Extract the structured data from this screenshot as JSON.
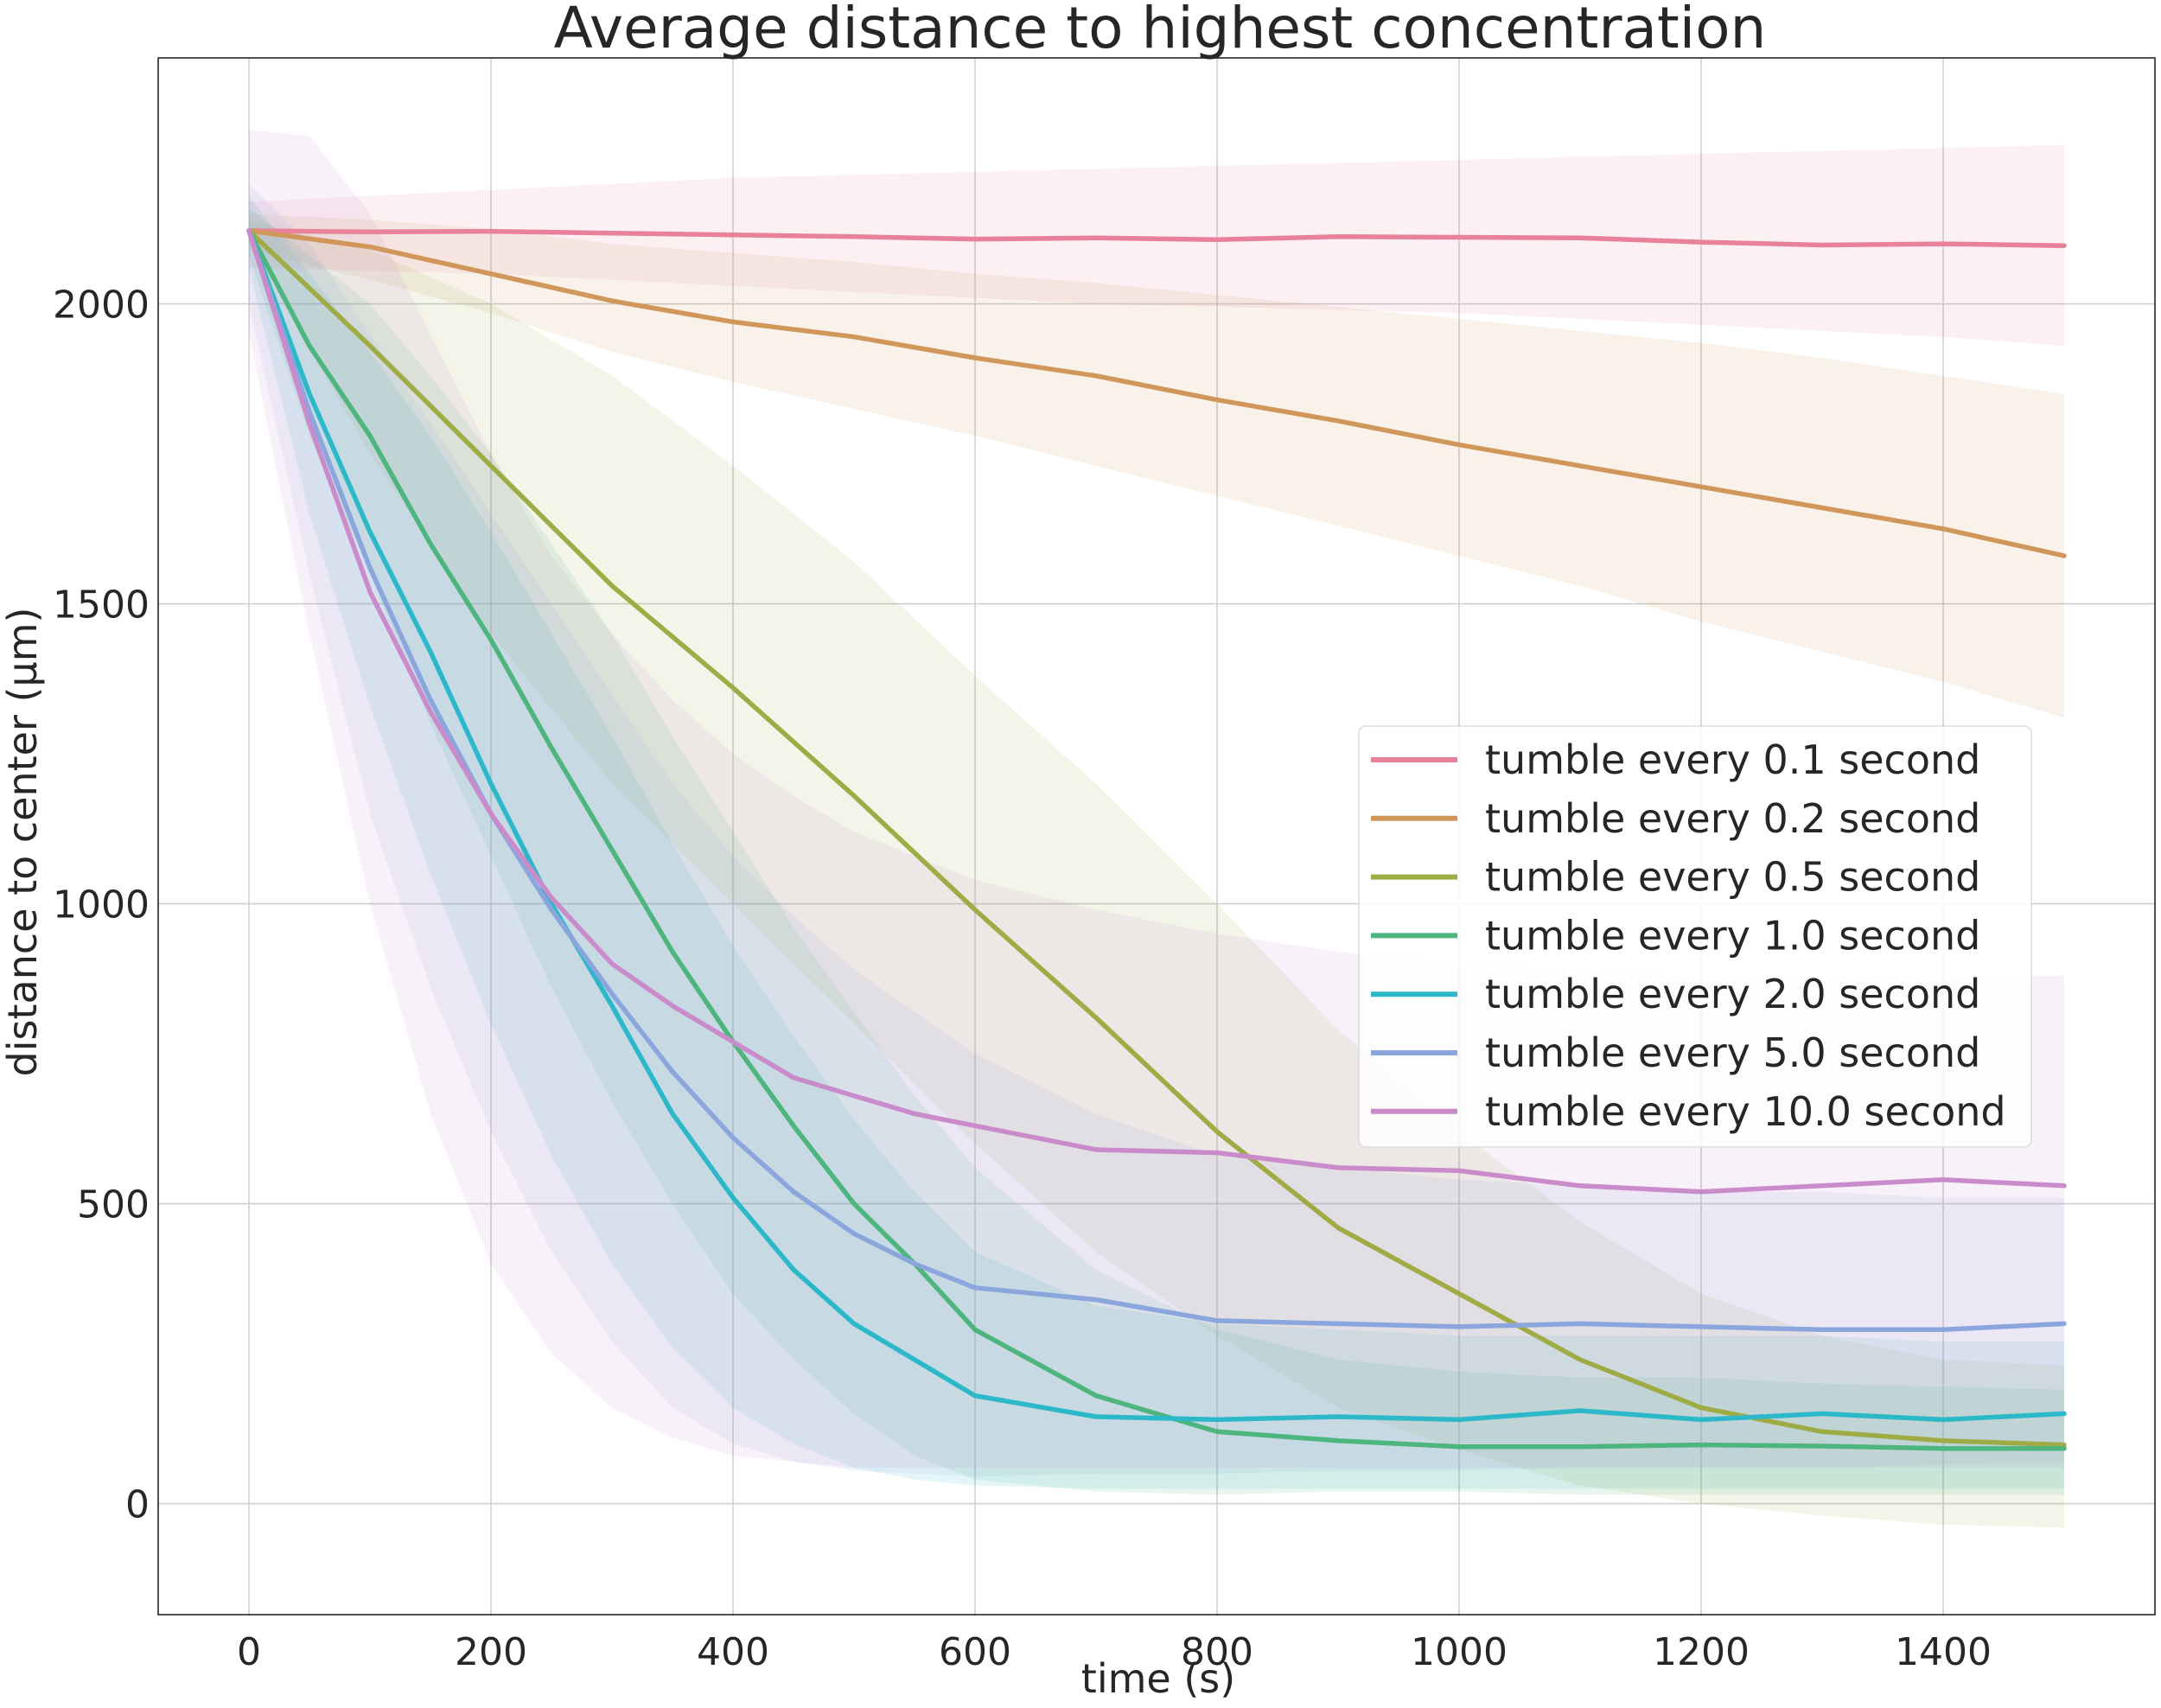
{
  "chart_data": {
    "type": "line",
    "title": "Average distance to highest concentration",
    "xlabel": "time (s)",
    "ylabel": "distance to center (μm)",
    "xlim": [
      -75,
      1575
    ],
    "ylim": [
      -185,
      2410
    ],
    "xticks": [
      0,
      200,
      400,
      600,
      800,
      1000,
      1200,
      1400
    ],
    "yticks": [
      0,
      500,
      1000,
      1500,
      2000
    ],
    "grid": true,
    "legend_position": "center-right",
    "series": [
      {
        "name": "tumble every 0.1 second",
        "color": "#e8829a",
        "x": [
          0,
          100,
          200,
          300,
          400,
          500,
          600,
          700,
          800,
          900,
          1000,
          1100,
          1200,
          1300,
          1400,
          1500
        ],
        "y": [
          2122,
          2120,
          2121,
          2118,
          2115,
          2112,
          2108,
          2110,
          2107,
          2112,
          2111,
          2110,
          2103,
          2098,
          2100,
          2097
        ],
        "y_lower": [
          2060,
          2055,
          2050,
          2040,
          2030,
          2020,
          2010,
          2000,
          1995,
          1990,
          1985,
          1975,
          1965,
          1955,
          1945,
          1930
        ],
        "y_upper": [
          2170,
          2180,
          2190,
          2200,
          2210,
          2215,
          2220,
          2225,
          2230,
          2235,
          2240,
          2245,
          2250,
          2255,
          2260,
          2265
        ]
      },
      {
        "name": "tumble every 0.2 second",
        "color": "#d1965a",
        "x": [
          0,
          100,
          200,
          300,
          400,
          500,
          600,
          700,
          800,
          900,
          1000,
          1100,
          1200,
          1300,
          1400,
          1500
        ],
        "y": [
          2122,
          2095,
          2050,
          2005,
          1970,
          1945,
          1910,
          1880,
          1840,
          1805,
          1765,
          1730,
          1695,
          1660,
          1625,
          1580
        ],
        "y_lower": [
          2090,
          2040,
          1985,
          1920,
          1870,
          1825,
          1780,
          1730,
          1680,
          1630,
          1580,
          1530,
          1470,
          1420,
          1370,
          1310
        ],
        "y_upper": [
          2150,
          2140,
          2125,
          2100,
          2085,
          2070,
          2050,
          2035,
          2015,
          1995,
          1975,
          1955,
          1935,
          1910,
          1880,
          1850
        ]
      },
      {
        "name": "tumble every 0.5 second",
        "color": "#9fac46",
        "x": [
          0,
          100,
          200,
          300,
          400,
          500,
          600,
          700,
          800,
          900,
          1000,
          1100,
          1200,
          1300,
          1400,
          1500
        ],
        "y": [
          2122,
          1930,
          1730,
          1530,
          1360,
          1180,
          990,
          810,
          620,
          460,
          350,
          240,
          160,
          120,
          105,
          98
        ],
        "y_lower": [
          2100,
          1750,
          1450,
          1200,
          1000,
          800,
          600,
          420,
          280,
          160,
          90,
          30,
          0,
          -20,
          -35,
          -40
        ],
        "y_upper": [
          2140,
          2090,
          2000,
          1880,
          1730,
          1570,
          1380,
          1200,
          1000,
          790,
          620,
          470,
          350,
          280,
          240,
          230
        ]
      },
      {
        "name": "tumble every 1.0 second",
        "color": "#4db57d",
        "x": [
          0,
          50,
          100,
          150,
          200,
          250,
          300,
          350,
          400,
          450,
          500,
          550,
          600,
          700,
          800,
          900,
          1000,
          1100,
          1200,
          1300,
          1400,
          1500
        ],
        "y": [
          2122,
          1930,
          1780,
          1600,
          1440,
          1260,
          1090,
          920,
          770,
          630,
          500,
          400,
          290,
          180,
          120,
          105,
          95,
          95,
          98,
          96,
          92,
          92
        ],
        "y_lower": [
          2080,
          1780,
          1550,
          1300,
          1080,
          860,
          670,
          500,
          350,
          240,
          150,
          80,
          40,
          20,
          15,
          20,
          20,
          15,
          15,
          15,
          15,
          15
        ],
        "y_upper": [
          2160,
          2080,
          2000,
          1880,
          1750,
          1600,
          1450,
          1280,
          1120,
          960,
          820,
          680,
          560,
          390,
          290,
          240,
          220,
          210,
          210,
          200,
          195,
          190
        ]
      },
      {
        "name": "tumble every 2.0 second",
        "color": "#2cb8c9",
        "x": [
          0,
          50,
          100,
          150,
          200,
          250,
          300,
          350,
          400,
          450,
          500,
          550,
          600,
          700,
          800,
          900,
          1000,
          1100,
          1200,
          1300,
          1400,
          1500
        ],
        "y": [
          2122,
          1850,
          1620,
          1420,
          1200,
          1000,
          830,
          650,
          510,
          390,
          300,
          240,
          180,
          145,
          140,
          145,
          140,
          155,
          140,
          150,
          140,
          150
        ],
        "y_lower": [
          2060,
          1650,
          1330,
          1050,
          800,
          580,
          400,
          260,
          160,
          100,
          60,
          40,
          30,
          25,
          25,
          25,
          25,
          25,
          25,
          25,
          25,
          25
        ],
        "y_upper": [
          2180,
          2050,
          1920,
          1780,
          1620,
          1450,
          1280,
          1100,
          930,
          780,
          640,
          520,
          420,
          330,
          300,
          290,
          280,
          280,
          280,
          280,
          270,
          270
        ]
      },
      {
        "name": "tumble every 5.0 second",
        "color": "#8aa6dc",
        "x": [
          0,
          50,
          100,
          150,
          200,
          250,
          300,
          350,
          400,
          450,
          500,
          550,
          600,
          700,
          800,
          900,
          1000,
          1100,
          1200,
          1300,
          1400,
          1500
        ],
        "y": [
          2122,
          1820,
          1560,
          1340,
          1150,
          990,
          850,
          720,
          610,
          520,
          450,
          400,
          360,
          340,
          305,
          300,
          295,
          300,
          295,
          290,
          290,
          300
        ],
        "y_lower": [
          2000,
          1550,
          1150,
          860,
          620,
          420,
          270,
          160,
          100,
          70,
          55,
          50,
          45,
          50,
          50,
          55,
          55,
          60,
          60,
          60,
          65,
          70
        ],
        "y_upper": [
          2200,
          2100,
          1950,
          1800,
          1650,
          1500,
          1350,
          1200,
          1080,
          980,
          890,
          820,
          750,
          650,
          580,
          560,
          540,
          530,
          520,
          520,
          510,
          510
        ]
      },
      {
        "name": "tumble every 10.0 second",
        "color": "#c98bca",
        "x": [
          0,
          50,
          100,
          150,
          200,
          250,
          300,
          350,
          400,
          450,
          500,
          550,
          600,
          700,
          800,
          900,
          1000,
          1100,
          1200,
          1300,
          1400,
          1500
        ],
        "y": [
          2122,
          1800,
          1520,
          1320,
          1150,
          1010,
          900,
          830,
          770,
          710,
          680,
          650,
          630,
          590,
          585,
          560,
          555,
          530,
          520,
          530,
          540,
          530
        ],
        "y_lower": [
          1950,
          1450,
          1000,
          650,
          400,
          250,
          160,
          110,
          80,
          70,
          60,
          60,
          60,
          60,
          60,
          60,
          60,
          60,
          60,
          60,
          60,
          60
        ],
        "y_upper": [
          2290,
          2280,
          2150,
          1950,
          1750,
          1580,
          1450,
          1340,
          1250,
          1180,
          1120,
          1080,
          1040,
          990,
          950,
          920,
          900,
          890,
          880,
          880,
          880,
          880
        ]
      }
    ]
  }
}
